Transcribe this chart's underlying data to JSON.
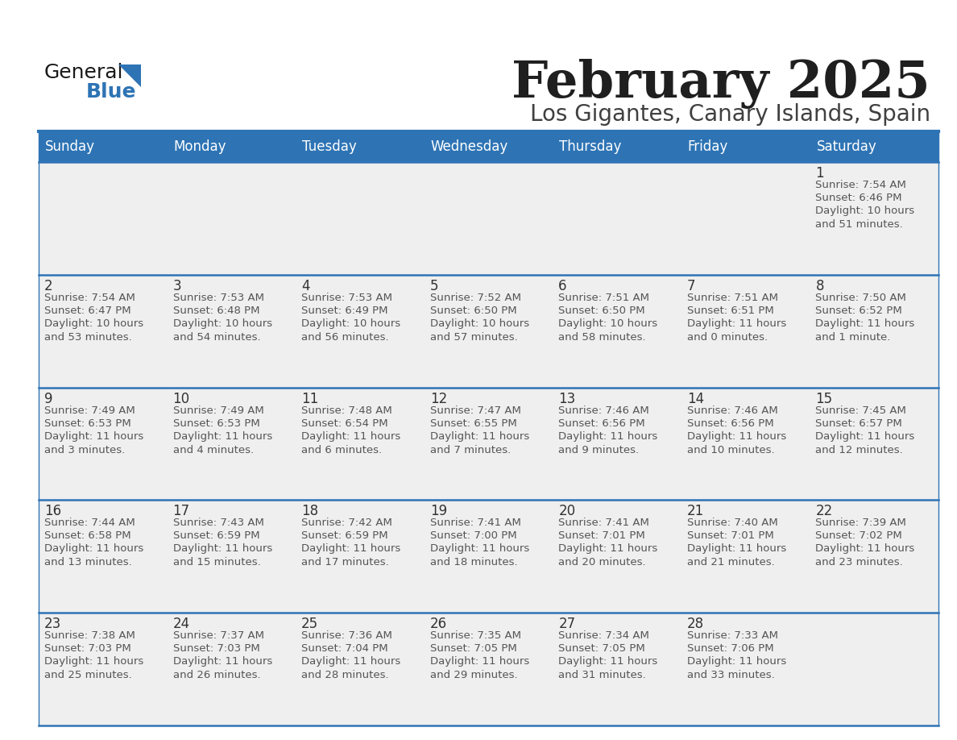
{
  "title": "February 2025",
  "subtitle": "Los Gigantes, Canary Islands, Spain",
  "header_bg": "#2E74B5",
  "header_text_color": "#FFFFFF",
  "cell_bg": "#EFEFEF",
  "text_color": "#555555",
  "day_number_color": "#333333",
  "separator_color": "#2E74B5",
  "days_of_week": [
    "Sunday",
    "Monday",
    "Tuesday",
    "Wednesday",
    "Thursday",
    "Friday",
    "Saturday"
  ],
  "weeks": [
    [
      {
        "day": null,
        "sunrise": null,
        "sunset": null,
        "daylight": null
      },
      {
        "day": null,
        "sunrise": null,
        "sunset": null,
        "daylight": null
      },
      {
        "day": null,
        "sunrise": null,
        "sunset": null,
        "daylight": null
      },
      {
        "day": null,
        "sunrise": null,
        "sunset": null,
        "daylight": null
      },
      {
        "day": null,
        "sunrise": null,
        "sunset": null,
        "daylight": null
      },
      {
        "day": null,
        "sunrise": null,
        "sunset": null,
        "daylight": null
      },
      {
        "day": 1,
        "sunrise": "7:54 AM",
        "sunset": "6:46 PM",
        "daylight": "10 hours\nand 51 minutes."
      }
    ],
    [
      {
        "day": 2,
        "sunrise": "7:54 AM",
        "sunset": "6:47 PM",
        "daylight": "10 hours\nand 53 minutes."
      },
      {
        "day": 3,
        "sunrise": "7:53 AM",
        "sunset": "6:48 PM",
        "daylight": "10 hours\nand 54 minutes."
      },
      {
        "day": 4,
        "sunrise": "7:53 AM",
        "sunset": "6:49 PM",
        "daylight": "10 hours\nand 56 minutes."
      },
      {
        "day": 5,
        "sunrise": "7:52 AM",
        "sunset": "6:50 PM",
        "daylight": "10 hours\nand 57 minutes."
      },
      {
        "day": 6,
        "sunrise": "7:51 AM",
        "sunset": "6:50 PM",
        "daylight": "10 hours\nand 58 minutes."
      },
      {
        "day": 7,
        "sunrise": "7:51 AM",
        "sunset": "6:51 PM",
        "daylight": "11 hours\nand 0 minutes."
      },
      {
        "day": 8,
        "sunrise": "7:50 AM",
        "sunset": "6:52 PM",
        "daylight": "11 hours\nand 1 minute."
      }
    ],
    [
      {
        "day": 9,
        "sunrise": "7:49 AM",
        "sunset": "6:53 PM",
        "daylight": "11 hours\nand 3 minutes."
      },
      {
        "day": 10,
        "sunrise": "7:49 AM",
        "sunset": "6:53 PM",
        "daylight": "11 hours\nand 4 minutes."
      },
      {
        "day": 11,
        "sunrise": "7:48 AM",
        "sunset": "6:54 PM",
        "daylight": "11 hours\nand 6 minutes."
      },
      {
        "day": 12,
        "sunrise": "7:47 AM",
        "sunset": "6:55 PM",
        "daylight": "11 hours\nand 7 minutes."
      },
      {
        "day": 13,
        "sunrise": "7:46 AM",
        "sunset": "6:56 PM",
        "daylight": "11 hours\nand 9 minutes."
      },
      {
        "day": 14,
        "sunrise": "7:46 AM",
        "sunset": "6:56 PM",
        "daylight": "11 hours\nand 10 minutes."
      },
      {
        "day": 15,
        "sunrise": "7:45 AM",
        "sunset": "6:57 PM",
        "daylight": "11 hours\nand 12 minutes."
      }
    ],
    [
      {
        "day": 16,
        "sunrise": "7:44 AM",
        "sunset": "6:58 PM",
        "daylight": "11 hours\nand 13 minutes."
      },
      {
        "day": 17,
        "sunrise": "7:43 AM",
        "sunset": "6:59 PM",
        "daylight": "11 hours\nand 15 minutes."
      },
      {
        "day": 18,
        "sunrise": "7:42 AM",
        "sunset": "6:59 PM",
        "daylight": "11 hours\nand 17 minutes."
      },
      {
        "day": 19,
        "sunrise": "7:41 AM",
        "sunset": "7:00 PM",
        "daylight": "11 hours\nand 18 minutes."
      },
      {
        "day": 20,
        "sunrise": "7:41 AM",
        "sunset": "7:01 PM",
        "daylight": "11 hours\nand 20 minutes."
      },
      {
        "day": 21,
        "sunrise": "7:40 AM",
        "sunset": "7:01 PM",
        "daylight": "11 hours\nand 21 minutes."
      },
      {
        "day": 22,
        "sunrise": "7:39 AM",
        "sunset": "7:02 PM",
        "daylight": "11 hours\nand 23 minutes."
      }
    ],
    [
      {
        "day": 23,
        "sunrise": "7:38 AM",
        "sunset": "7:03 PM",
        "daylight": "11 hours\nand 25 minutes."
      },
      {
        "day": 24,
        "sunrise": "7:37 AM",
        "sunset": "7:03 PM",
        "daylight": "11 hours\nand 26 minutes."
      },
      {
        "day": 25,
        "sunrise": "7:36 AM",
        "sunset": "7:04 PM",
        "daylight": "11 hours\nand 28 minutes."
      },
      {
        "day": 26,
        "sunrise": "7:35 AM",
        "sunset": "7:05 PM",
        "daylight": "11 hours\nand 29 minutes."
      },
      {
        "day": 27,
        "sunrise": "7:34 AM",
        "sunset": "7:05 PM",
        "daylight": "11 hours\nand 31 minutes."
      },
      {
        "day": 28,
        "sunrise": "7:33 AM",
        "sunset": "7:06 PM",
        "daylight": "11 hours\nand 33 minutes."
      },
      {
        "day": null,
        "sunrise": null,
        "sunset": null,
        "daylight": null
      }
    ]
  ],
  "logo_general_color": "#1a1a1a",
  "logo_blue_color": "#2E74B5",
  "logo_triangle_color": "#2E74B5",
  "title_color": "#1F1F1F",
  "subtitle_color": "#404040"
}
